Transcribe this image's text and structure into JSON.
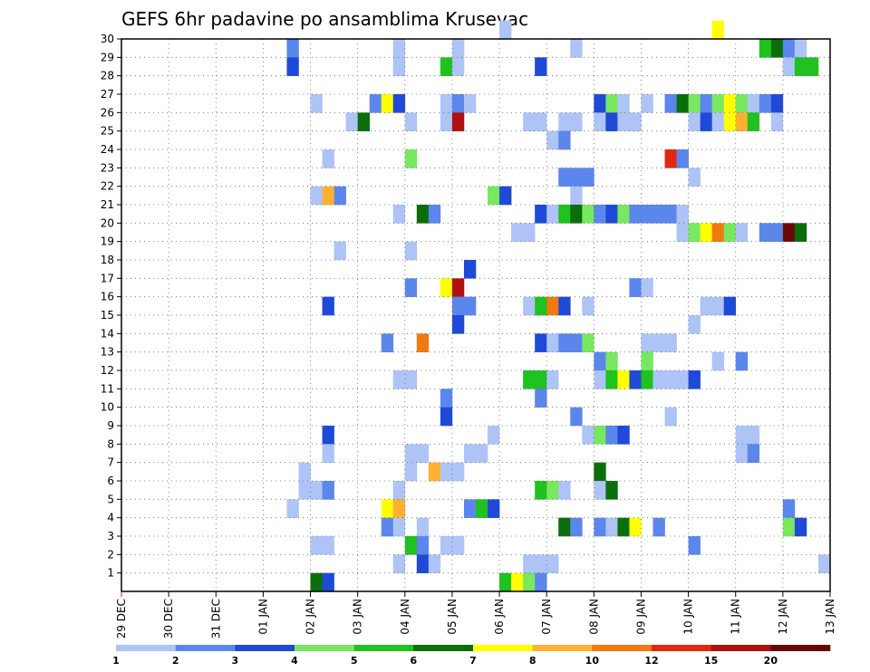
{
  "chart_data": {
    "type": "heatmap",
    "title": "GEFS 6hr padavine po ansamblima Krusevac",
    "x_tick_labels": [
      "29 DEC",
      "30 DEC",
      "31 DEC",
      "01 JAN",
      "02 JAN",
      "03 JAN",
      "04 JAN",
      "05 JAN",
      "06 JAN",
      "07 JAN",
      "08 JAN",
      "09 JAN",
      "10 JAN",
      "11 JAN",
      "12 JAN",
      "13 JAN"
    ],
    "x_tick_positions": [
      0,
      4,
      8,
      12,
      16,
      20,
      24,
      28,
      32,
      36,
      40,
      44,
      48,
      52,
      56,
      60
    ],
    "x_range": [
      0,
      60
    ],
    "y_tick_labels": [
      "1",
      "2",
      "3",
      "4",
      "5",
      "6",
      "7",
      "8",
      "9",
      "10",
      "11",
      "12",
      "13",
      "14",
      "15",
      "16",
      "17",
      "18",
      "19",
      "20",
      "21",
      "22",
      "23",
      "24",
      "25",
      "26",
      "27",
      "28",
      "29",
      "30"
    ],
    "y_range": [
      0,
      30
    ],
    "grid": true,
    "colorbar": {
      "labels": [
        "1",
        "2",
        "3",
        "4",
        "5",
        "6",
        "7",
        "8",
        "10",
        "12",
        "15",
        "20"
      ],
      "colors": [
        "#aec4f7",
        "#5b86ec",
        "#1f4ad8",
        "#78e860",
        "#1fc21f",
        "#0b6e0b",
        "#ffff00",
        "#ffb030",
        "#f07a10",
        "#e02810",
        "#b01010",
        "#6a0808"
      ]
    },
    "cells": [
      [
        32,
        30,
        1
      ],
      [
        50,
        30,
        7
      ],
      [
        14,
        29,
        2
      ],
      [
        23,
        29,
        1
      ],
      [
        28,
        29,
        1
      ],
      [
        38,
        29,
        1
      ],
      [
        54,
        29,
        5
      ],
      [
        55,
        29,
        6
      ],
      [
        56,
        29,
        2
      ],
      [
        57,
        29,
        1
      ],
      [
        14,
        28,
        3
      ],
      [
        23,
        28,
        1
      ],
      [
        27,
        28,
        5
      ],
      [
        28,
        28,
        1
      ],
      [
        35,
        28,
        3
      ],
      [
        56,
        28,
        1
      ],
      [
        57,
        28,
        5
      ],
      [
        58,
        28,
        5
      ],
      [
        16,
        26,
        1
      ],
      [
        21,
        26,
        2
      ],
      [
        22,
        26,
        7
      ],
      [
        23,
        26,
        3
      ],
      [
        27,
        26,
        1
      ],
      [
        28,
        26,
        2
      ],
      [
        29,
        26,
        1
      ],
      [
        40,
        26,
        3
      ],
      [
        41,
        26,
        4
      ],
      [
        42,
        26,
        1
      ],
      [
        44,
        26,
        1
      ],
      [
        46,
        26,
        2
      ],
      [
        47,
        26,
        6
      ],
      [
        48,
        26,
        4
      ],
      [
        49,
        26,
        2
      ],
      [
        50,
        26,
        4
      ],
      [
        51,
        26,
        7
      ],
      [
        52,
        26,
        4
      ],
      [
        53,
        26,
        1
      ],
      [
        54,
        26,
        2
      ],
      [
        55,
        26,
        3
      ],
      [
        19,
        25,
        1
      ],
      [
        20,
        25,
        6
      ],
      [
        24,
        25,
        1
      ],
      [
        27,
        25,
        1
      ],
      [
        28,
        25,
        11
      ],
      [
        34,
        25,
        1
      ],
      [
        35,
        25,
        1
      ],
      [
        37,
        25,
        1
      ],
      [
        38,
        25,
        1
      ],
      [
        40,
        25,
        1
      ],
      [
        41,
        25,
        3
      ],
      [
        42,
        25,
        1
      ],
      [
        43,
        25,
        1
      ],
      [
        48,
        25,
        1
      ],
      [
        49,
        25,
        3
      ],
      [
        50,
        25,
        1
      ],
      [
        51,
        25,
        7
      ],
      [
        52,
        25,
        8
      ],
      [
        53,
        25,
        5
      ],
      [
        55,
        25,
        1
      ],
      [
        36,
        24,
        1
      ],
      [
        37,
        24,
        2
      ],
      [
        17,
        23,
        1
      ],
      [
        24,
        23,
        4
      ],
      [
        46,
        23,
        10
      ],
      [
        47,
        23,
        2
      ],
      [
        37,
        22,
        2
      ],
      [
        38,
        22,
        2
      ],
      [
        39,
        22,
        2
      ],
      [
        48,
        22,
        1
      ],
      [
        16,
        21,
        1
      ],
      [
        17,
        21,
        8
      ],
      [
        18,
        21,
        2
      ],
      [
        31,
        21,
        4
      ],
      [
        32,
        21,
        3
      ],
      [
        38,
        21,
        1
      ],
      [
        23,
        20,
        1
      ],
      [
        25,
        20,
        6
      ],
      [
        26,
        20,
        2
      ],
      [
        35,
        20,
        3
      ],
      [
        36,
        20,
        1
      ],
      [
        37,
        20,
        5
      ],
      [
        38,
        20,
        6
      ],
      [
        39,
        20,
        4
      ],
      [
        40,
        20,
        2
      ],
      [
        41,
        20,
        3
      ],
      [
        42,
        20,
        4
      ],
      [
        43,
        20,
        2
      ],
      [
        44,
        20,
        2
      ],
      [
        45,
        20,
        2
      ],
      [
        46,
        20,
        2
      ],
      [
        47,
        20,
        1
      ],
      [
        33,
        19,
        1
      ],
      [
        34,
        19,
        1
      ],
      [
        47,
        19,
        1
      ],
      [
        48,
        19,
        4
      ],
      [
        49,
        19,
        7
      ],
      [
        50,
        19,
        9
      ],
      [
        51,
        19,
        4
      ],
      [
        52,
        19,
        1
      ],
      [
        54,
        19,
        2
      ],
      [
        55,
        19,
        2
      ],
      [
        56,
        19,
        12
      ],
      [
        57,
        19,
        6
      ],
      [
        18,
        18,
        1
      ],
      [
        24,
        18,
        1
      ],
      [
        29,
        17,
        3
      ],
      [
        24,
        16,
        2
      ],
      [
        27,
        16,
        7
      ],
      [
        28,
        16,
        11
      ],
      [
        43,
        16,
        2
      ],
      [
        44,
        16,
        1
      ],
      [
        17,
        15,
        3
      ],
      [
        28,
        15,
        2
      ],
      [
        29,
        15,
        2
      ],
      [
        34,
        15,
        1
      ],
      [
        35,
        15,
        5
      ],
      [
        36,
        15,
        9
      ],
      [
        37,
        15,
        3
      ],
      [
        39,
        15,
        1
      ],
      [
        49,
        15,
        1
      ],
      [
        50,
        15,
        1
      ],
      [
        51,
        15,
        3
      ],
      [
        28,
        14,
        3
      ],
      [
        48,
        14,
        1
      ],
      [
        22,
        13,
        2
      ],
      [
        25,
        13,
        9
      ],
      [
        35,
        13,
        3
      ],
      [
        36,
        13,
        1
      ],
      [
        37,
        13,
        2
      ],
      [
        38,
        13,
        2
      ],
      [
        39,
        13,
        4
      ],
      [
        44,
        13,
        1
      ],
      [
        45,
        13,
        1
      ],
      [
        46,
        13,
        1
      ],
      [
        40,
        12,
        2
      ],
      [
        41,
        12,
        4
      ],
      [
        44,
        12,
        4
      ],
      [
        50,
        12,
        1
      ],
      [
        52,
        12,
        2
      ],
      [
        23,
        11,
        1
      ],
      [
        24,
        11,
        1
      ],
      [
        34,
        11,
        5
      ],
      [
        35,
        11,
        5
      ],
      [
        36,
        11,
        1
      ],
      [
        40,
        11,
        1
      ],
      [
        41,
        11,
        5
      ],
      [
        42,
        11,
        7
      ],
      [
        43,
        11,
        3
      ],
      [
        44,
        11,
        5
      ],
      [
        45,
        11,
        1
      ],
      [
        46,
        11,
        1
      ],
      [
        47,
        11,
        1
      ],
      [
        48,
        11,
        3
      ],
      [
        27,
        10,
        2
      ],
      [
        35,
        10,
        2
      ],
      [
        27,
        9,
        3
      ],
      [
        38,
        9,
        2
      ],
      [
        46,
        9,
        1
      ],
      [
        17,
        8,
        3
      ],
      [
        31,
        8,
        1
      ],
      [
        39,
        8,
        1
      ],
      [
        40,
        8,
        4
      ],
      [
        41,
        8,
        2
      ],
      [
        42,
        8,
        3
      ],
      [
        52,
        8,
        1
      ],
      [
        53,
        8,
        1
      ],
      [
        17,
        7,
        1
      ],
      [
        24,
        7,
        1
      ],
      [
        25,
        7,
        1
      ],
      [
        29,
        7,
        1
      ],
      [
        30,
        7,
        1
      ],
      [
        52,
        7,
        1
      ],
      [
        53,
        7,
        2
      ],
      [
        15,
        6,
        1
      ],
      [
        24,
        6,
        1
      ],
      [
        26,
        6,
        8
      ],
      [
        27,
        6,
        1
      ],
      [
        28,
        6,
        1
      ],
      [
        40,
        6,
        6
      ],
      [
        15,
        5,
        1
      ],
      [
        16,
        5,
        1
      ],
      [
        17,
        5,
        2
      ],
      [
        23,
        5,
        1
      ],
      [
        35,
        5,
        5
      ],
      [
        36,
        5,
        4
      ],
      [
        37,
        5,
        1
      ],
      [
        40,
        5,
        1
      ],
      [
        41,
        5,
        6
      ],
      [
        14,
        4,
        1
      ],
      [
        22,
        4,
        7
      ],
      [
        23,
        4,
        8
      ],
      [
        29,
        4,
        2
      ],
      [
        30,
        4,
        5
      ],
      [
        31,
        4,
        3
      ],
      [
        56,
        4,
        2
      ],
      [
        22,
        3,
        2
      ],
      [
        23,
        3,
        1
      ],
      [
        25,
        3,
        1
      ],
      [
        37,
        3,
        6
      ],
      [
        38,
        3,
        2
      ],
      [
        40,
        3,
        2
      ],
      [
        41,
        3,
        1
      ],
      [
        42,
        3,
        6
      ],
      [
        43,
        3,
        7
      ],
      [
        45,
        3,
        2
      ],
      [
        56,
        3,
        4
      ],
      [
        57,
        3,
        3
      ],
      [
        16,
        2,
        1
      ],
      [
        17,
        2,
        1
      ],
      [
        24,
        2,
        5
      ],
      [
        25,
        2,
        2
      ],
      [
        27,
        2,
        1
      ],
      [
        28,
        2,
        1
      ],
      [
        48,
        2,
        2
      ],
      [
        23,
        1,
        1
      ],
      [
        25,
        1,
        3
      ],
      [
        26,
        1,
        1
      ],
      [
        34,
        1,
        1
      ],
      [
        35,
        1,
        1
      ],
      [
        36,
        1,
        1
      ],
      [
        59,
        1,
        1
      ],
      [
        16,
        0,
        6
      ],
      [
        17,
        0,
        3
      ],
      [
        32,
        0,
        5
      ],
      [
        33,
        0,
        7
      ],
      [
        34,
        0,
        4
      ],
      [
        35,
        0,
        2
      ]
    ]
  }
}
